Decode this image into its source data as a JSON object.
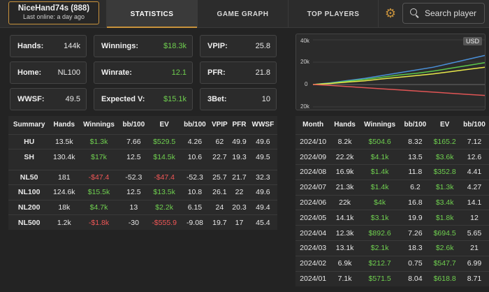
{
  "player": {
    "name": "NiceHand74s (888)",
    "last_online": "Last online: a day ago"
  },
  "tabs": [
    "STATISTICS",
    "GAME GRAPH",
    "TOP PLAYERS"
  ],
  "search": {
    "placeholder": "Search player"
  },
  "stats": {
    "hands": {
      "label": "Hands:",
      "value": "144k"
    },
    "winnings": {
      "label": "Winnings:",
      "value": "$18.3k"
    },
    "vpip": {
      "label": "VPIP:",
      "value": "25.8"
    },
    "home": {
      "label": "Home:",
      "value": "NL100"
    },
    "winrate": {
      "label": "Winrate:",
      "value": "12.1"
    },
    "pfr": {
      "label": "PFR:",
      "value": "21.8"
    },
    "wwsf": {
      "label": "WWSF:",
      "value": "49.5"
    },
    "expected": {
      "label": "Expected V:",
      "value": "$15.1k"
    },
    "threebet": {
      "label": "3Bet:",
      "value": "10"
    }
  },
  "chart": {
    "currency": "USD",
    "y_labels": [
      "40k",
      "20k",
      "0",
      "20k"
    ]
  },
  "chart_data": {
    "type": "line",
    "ylim": [
      -20000,
      40000
    ],
    "x": [
      0,
      1,
      2,
      3,
      4,
      5,
      6,
      7,
      8,
      9,
      10
    ],
    "series": [
      {
        "name": "blue",
        "color": "#4a90d9",
        "values": [
          0,
          1500,
          3500,
          5500,
          8000,
          10500,
          13000,
          15500,
          19000,
          22500,
          26000
        ]
      },
      {
        "name": "green",
        "color": "#5cc84a",
        "values": [
          0,
          1200,
          3000,
          4500,
          6500,
          8500,
          10000,
          12000,
          14500,
          17000,
          19500
        ]
      },
      {
        "name": "yellow",
        "color": "#e8e84a",
        "values": [
          0,
          900,
          2200,
          3300,
          5000,
          6500,
          8000,
          9500,
          11500,
          13500,
          15500
        ]
      },
      {
        "name": "red",
        "color": "#e05555",
        "values": [
          0,
          -800,
          -1800,
          -2800,
          -3800,
          -4800,
          -5800,
          -6800,
          -7800,
          -8800,
          -9800
        ]
      }
    ]
  },
  "summary": {
    "headers": [
      "Summary",
      "Hands",
      "Winnings",
      "bb/100",
      "EV",
      "bb/100",
      "VPIP",
      "PFR",
      "WWSF"
    ],
    "rows": [
      [
        "HU",
        "13.5k",
        "$1.3k",
        "7.66",
        "$529.5",
        "4.26",
        "62",
        "49.9",
        "49.6"
      ],
      [
        "SH",
        "130.4k",
        "$17k",
        "12.5",
        "$14.5k",
        "10.6",
        "22.7",
        "19.3",
        "49.5"
      ],
      [
        "NL50",
        "181",
        "-$47.4",
        "-52.3",
        "-$47.4",
        "-52.3",
        "25.7",
        "21.7",
        "32.3"
      ],
      [
        "NL100",
        "124.6k",
        "$15.5k",
        "12.5",
        "$13.5k",
        "10.8",
        "26.1",
        "22",
        "49.6"
      ],
      [
        "NL200",
        "18k",
        "$4.7k",
        "13",
        "$2.2k",
        "6.15",
        "24",
        "20.3",
        "49.4"
      ],
      [
        "NL500",
        "1.2k",
        "-$1.8k",
        "-30",
        "-$555.9",
        "-9.08",
        "19.7",
        "17",
        "45.4"
      ]
    ]
  },
  "monthly": {
    "headers": [
      "Month",
      "Hands",
      "Winnings",
      "bb/100",
      "EV",
      "bb/100"
    ],
    "rows": [
      [
        "2024/10",
        "8.2k",
        "$504.6",
        "8.32",
        "$165.2",
        "7.12"
      ],
      [
        "2024/09",
        "22.2k",
        "$4.1k",
        "13.5",
        "$3.6k",
        "12.6"
      ],
      [
        "2024/08",
        "16.9k",
        "$1.4k",
        "11.8",
        "$352.8",
        "4.41"
      ],
      [
        "2024/07",
        "21.3k",
        "$1.4k",
        "6.2",
        "$1.3k",
        "4.27"
      ],
      [
        "2024/06",
        "22k",
        "$4k",
        "16.8",
        "$3.4k",
        "14.1"
      ],
      [
        "2024/05",
        "14.1k",
        "$3.1k",
        "19.9",
        "$1.8k",
        "12"
      ],
      [
        "2024/04",
        "12.3k",
        "$892.6",
        "7.26",
        "$694.5",
        "5.65"
      ],
      [
        "2024/03",
        "13.1k",
        "$2.1k",
        "18.3",
        "$2.6k",
        "21"
      ],
      [
        "2024/02",
        "6.9k",
        "$212.7",
        "0.75",
        "$547.7",
        "6.99"
      ],
      [
        "2024/01",
        "7.1k",
        "$571.5",
        "8.04",
        "$618.8",
        "8.71"
      ]
    ]
  }
}
